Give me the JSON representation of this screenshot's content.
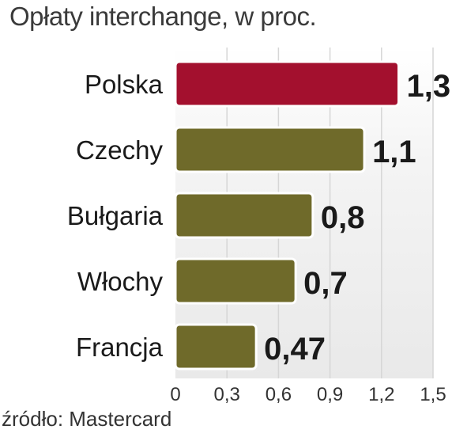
{
  "title": "Opłaty interchange, w proc.",
  "source": "źródło: Mastercard",
  "colors": {
    "highlight": "#a3102e",
    "bar": "#6f6a2a",
    "bar_border": "#ffffff",
    "panel": "#efefef",
    "grid": "#d6d6d6",
    "text": "#1a1a1a"
  },
  "chart_data": {
    "type": "bar",
    "orientation": "horizontal",
    "categories": [
      "Polska",
      "Czechy",
      "Bułgaria",
      "Włochy",
      "Francja"
    ],
    "values": [
      1.3,
      1.1,
      0.8,
      0.7,
      0.47
    ],
    "value_labels": [
      "1,3",
      "1,1",
      "0,8",
      "0,7",
      "0,47"
    ],
    "highlighted_category": "Polska",
    "xlim": [
      0,
      1.5
    ],
    "x_ticks": [
      0,
      0.3,
      0.6,
      0.9,
      1.2,
      1.5
    ],
    "x_tick_labels": [
      "0",
      "0,3",
      "0,6",
      "0,9",
      "1,2",
      "1,5"
    ],
    "grid": true
  }
}
